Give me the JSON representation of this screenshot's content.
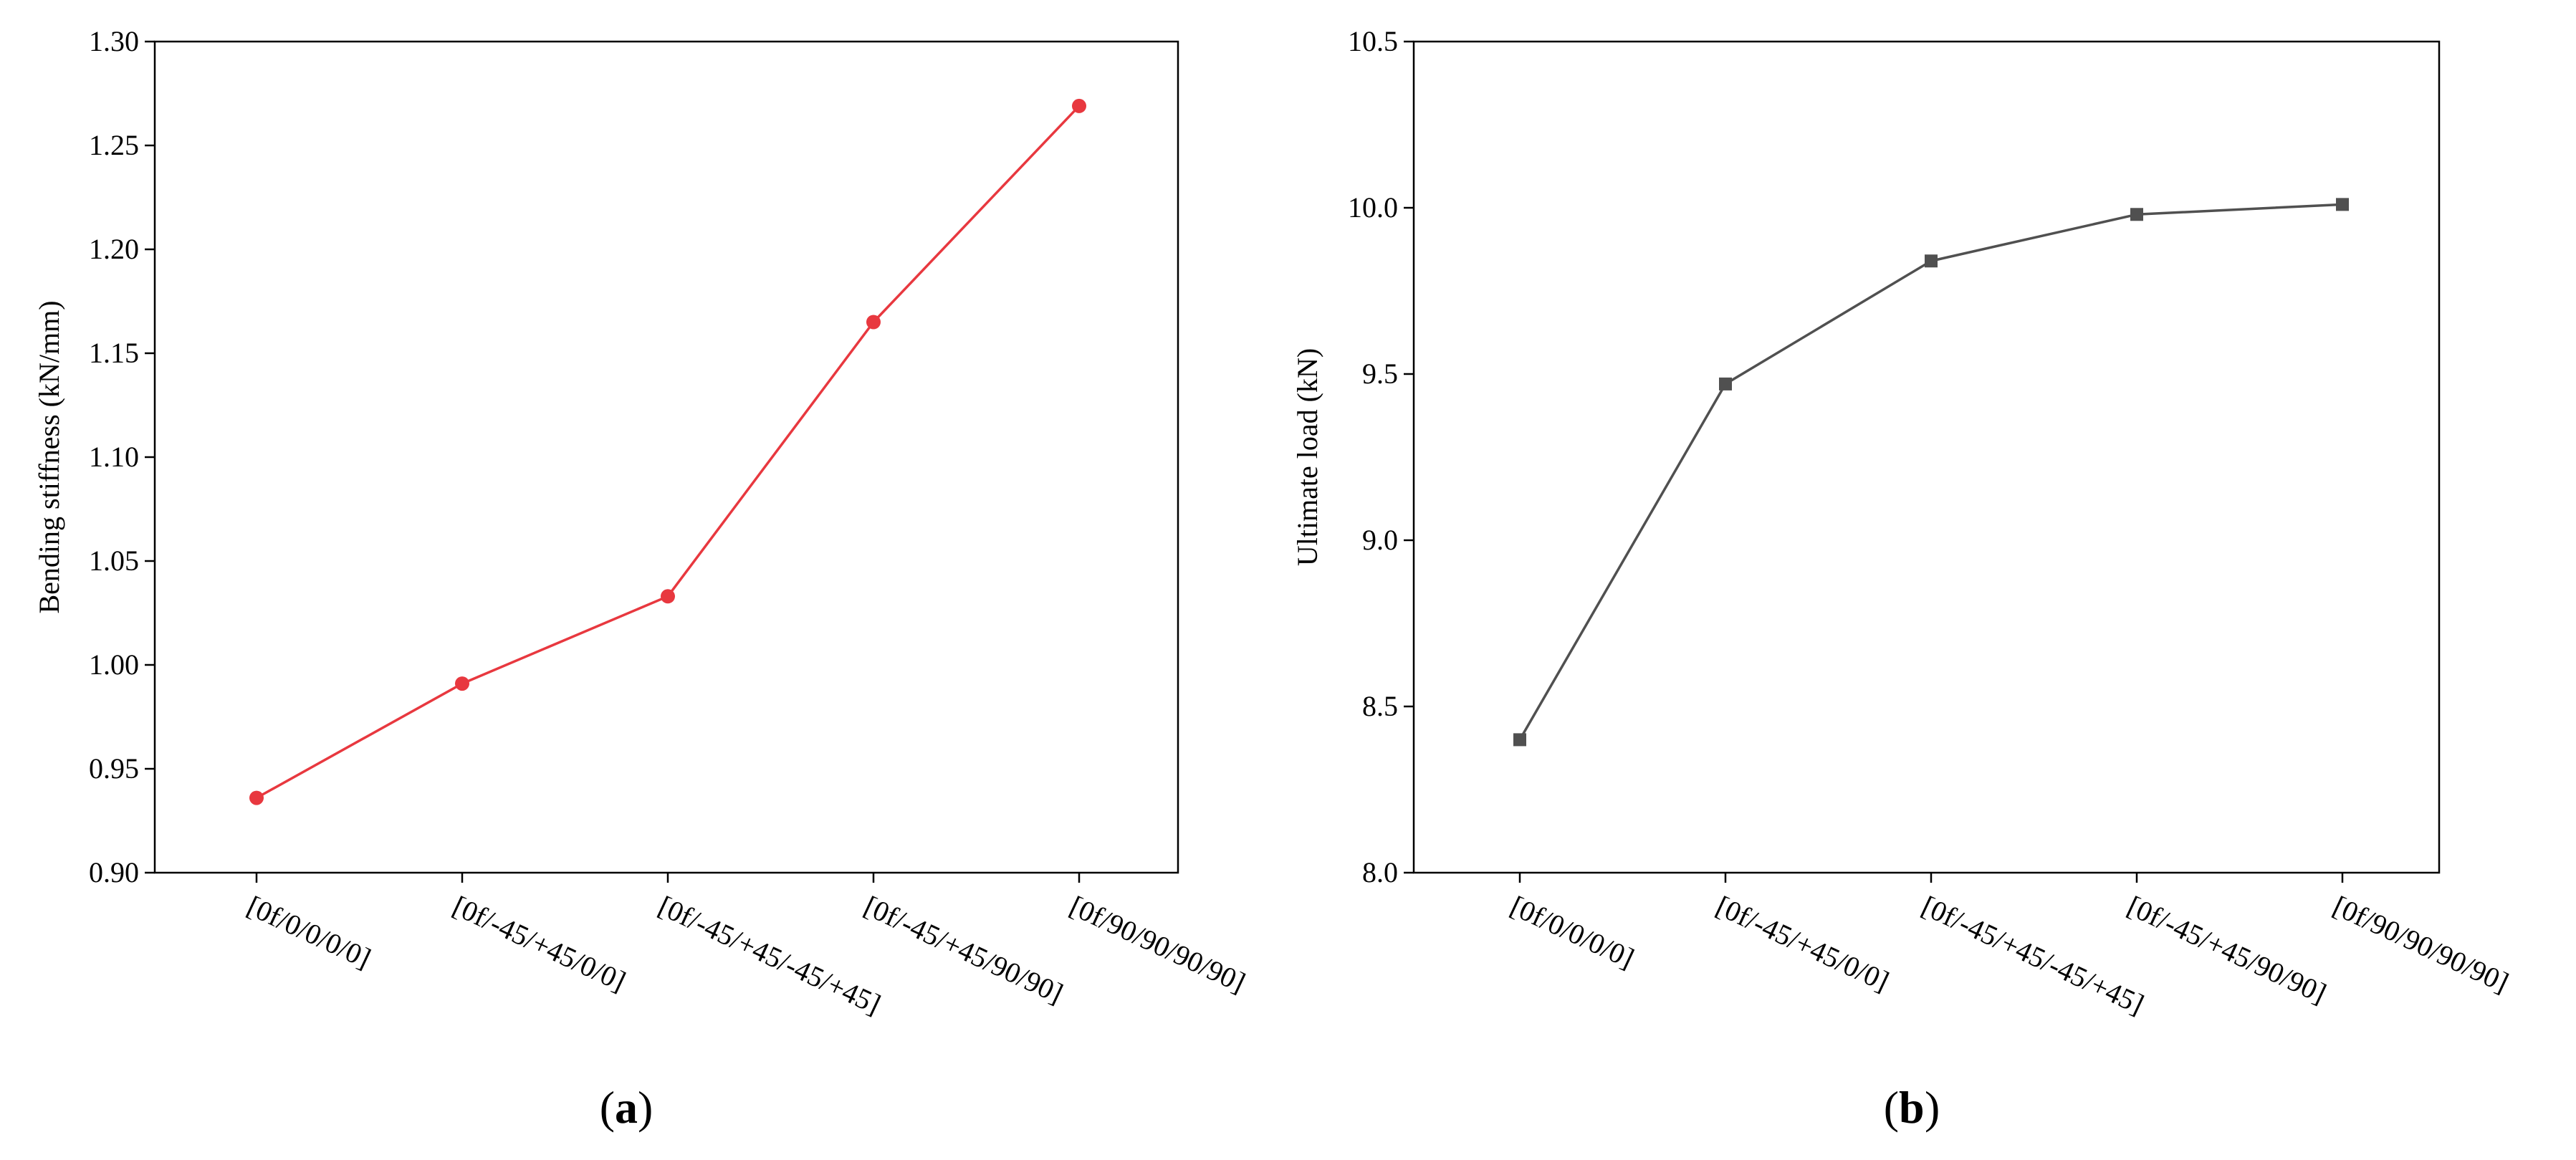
{
  "chart_data": [
    {
      "type": "line",
      "caption": "a",
      "categories": [
        "[0f/0/0/0/0]",
        "[0f/-45/+45/0/0]",
        "[0f/-45/+45/-45/+45]",
        "[0f/-45/+45/90/90]",
        "[0f/90/90/90/90]"
      ],
      "series": [
        {
          "values": [
            0.936,
            0.991,
            1.033,
            1.165,
            1.269
          ],
          "color": "#e8383f",
          "marker": "circle"
        }
      ],
      "title": "",
      "xlabel": "",
      "ylabel": "Bending stiffness (kN/mm)",
      "ylim": [
        0.9,
        1.3
      ],
      "yticks": [
        "0.90",
        "0.95",
        "1.00",
        "1.05",
        "1.10",
        "1.15",
        "1.20",
        "1.25",
        "1.30"
      ],
      "grid": false
    },
    {
      "type": "line",
      "caption": "b",
      "categories": [
        "[0f/0/0/0/0]",
        "[0f/-45/+45/0/0]",
        "[0f/-45/+45/-45/+45]",
        "[0f/-45/+45/90/90]",
        "[0f/90/90/90/90]"
      ],
      "series": [
        {
          "values": [
            8.4,
            9.47,
            9.84,
            9.98,
            10.01
          ],
          "color": "#505050",
          "marker": "square"
        }
      ],
      "title": "",
      "xlabel": "",
      "ylabel": "Ultimate load (kN)",
      "ylim": [
        8.0,
        10.5
      ],
      "yticks": [
        "8.0",
        "8.5",
        "9.0",
        "9.5",
        "10.0",
        "10.5"
      ],
      "grid": false
    }
  ]
}
